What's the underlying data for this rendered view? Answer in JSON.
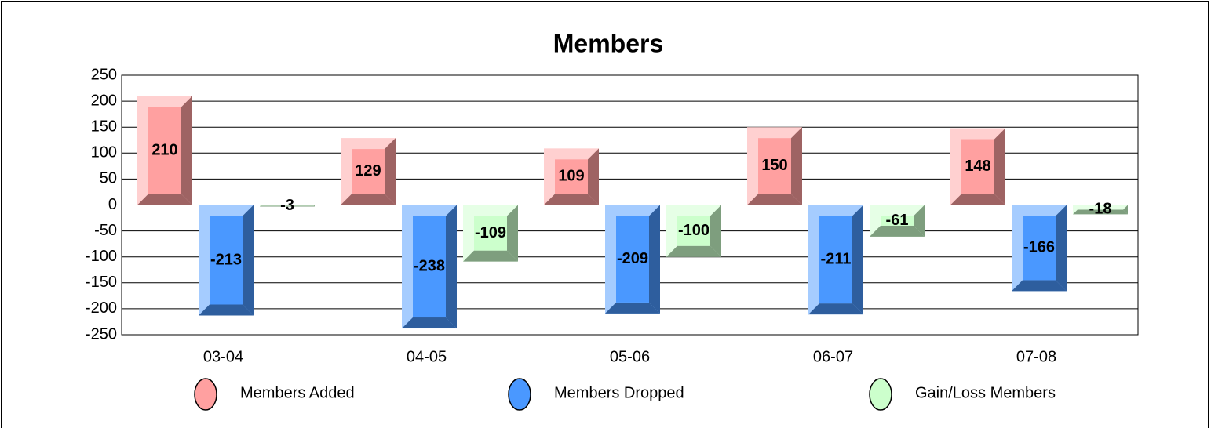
{
  "chart_data": {
    "type": "bar",
    "title": "Members",
    "categories": [
      "03-04",
      "04-05",
      "05-06",
      "06-07",
      "07-08"
    ],
    "series": [
      {
        "name": "Members Added",
        "color": "#ffa0a0",
        "values": [
          210,
          129,
          109,
          150,
          148
        ]
      },
      {
        "name": "Members Dropped",
        "color": "#4a98ff",
        "values": [
          -213,
          -238,
          -209,
          -211,
          -166
        ]
      },
      {
        "name": "Gain/Loss Members",
        "color": "#ccffcc",
        "values": [
          -3,
          -109,
          -100,
          -61,
          -18
        ]
      }
    ],
    "ylim": [
      -250,
      250
    ],
    "yticks": [
      -250,
      -200,
      -150,
      -100,
      -50,
      0,
      50,
      100,
      150,
      200,
      250
    ],
    "grid": true,
    "legend": "bottom"
  }
}
